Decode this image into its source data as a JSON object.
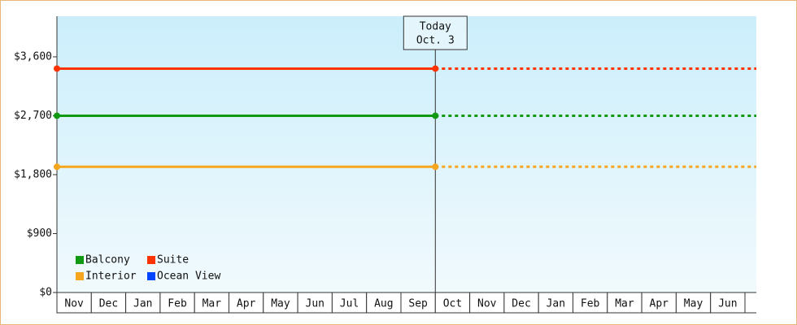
{
  "chart_data": {
    "type": "line",
    "categories": [
      "Nov",
      "Dec",
      "Jan",
      "Feb",
      "Mar",
      "Apr",
      "May",
      "Jun",
      "Jul",
      "Aug",
      "Sep",
      "Oct",
      "Nov",
      "Dec",
      "Jan",
      "Feb",
      "Mar",
      "Apr",
      "May",
      "Jun"
    ],
    "series": [
      {
        "name": "Balcony",
        "color": "#119911",
        "values": [
          2700,
          2700,
          2700,
          2700,
          2700,
          2700,
          2700,
          2700,
          2700,
          2700,
          2700,
          2700,
          2700,
          2700,
          2700,
          2700,
          2700,
          2700,
          2700,
          2700
        ]
      },
      {
        "name": "Suite",
        "color": "#ff3300",
        "values": [
          3420,
          3420,
          3420,
          3420,
          3420,
          3420,
          3420,
          3420,
          3420,
          3420,
          3420,
          3420,
          3420,
          3420,
          3420,
          3420,
          3420,
          3420,
          3420,
          3420
        ]
      },
      {
        "name": "Interior",
        "color": "#f5a51e",
        "values": [
          1920,
          1920,
          1920,
          1920,
          1920,
          1920,
          1920,
          1920,
          1920,
          1920,
          1920,
          1920,
          1920,
          1920,
          1920,
          1920,
          1920,
          1920,
          1920,
          1920
        ]
      },
      {
        "name": "Ocean View",
        "color": "#0044ff",
        "values": [
          null,
          null,
          null,
          null,
          null,
          null,
          null,
          null,
          null,
          null,
          null,
          null,
          null,
          null,
          null,
          null,
          null,
          null,
          null,
          null
        ]
      }
    ],
    "annotation": [
      "Today",
      "Oct. 3"
    ],
    "ylim": [
      0,
      4220
    ],
    "yticks": [
      {
        "value": 0,
        "label": "$0"
      },
      {
        "value": 900,
        "label": "$900"
      },
      {
        "value": 1800,
        "label": "$1,800"
      },
      {
        "value": 2700,
        "label": "$2,700"
      },
      {
        "value": 3600,
        "label": "$3,600"
      }
    ],
    "legend": "lower left"
  }
}
